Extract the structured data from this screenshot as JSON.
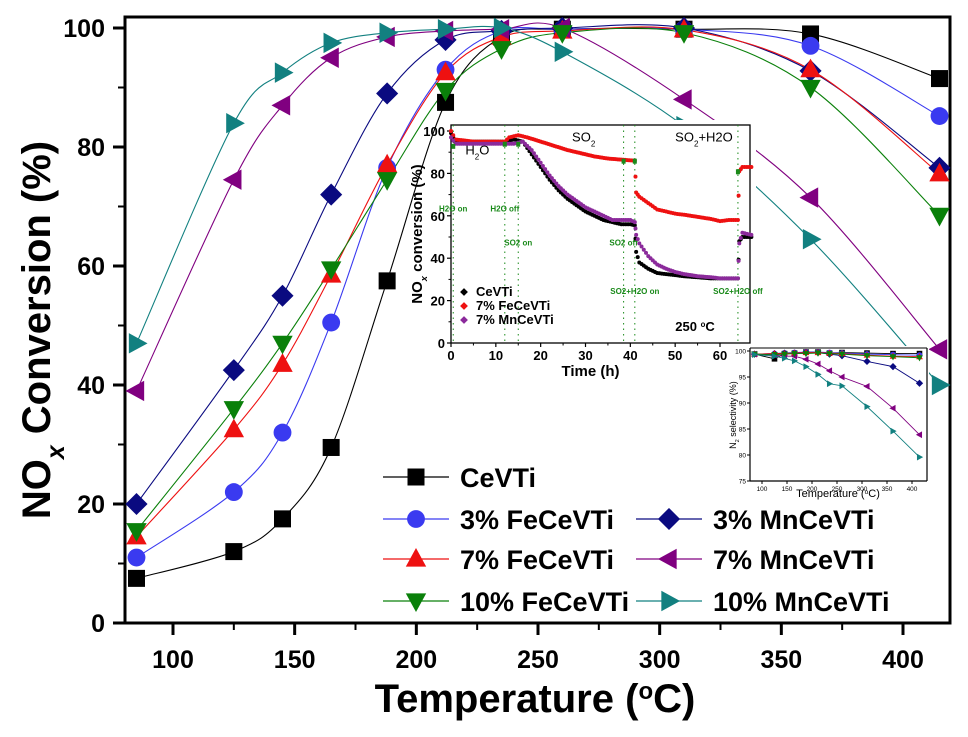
{
  "chart_data": [
    {
      "id": "main",
      "type": "line",
      "title": "",
      "xlabel": "Temperature (",
      "xlabel_sup": "o",
      "xlabel_tail": "C)",
      "ylabel_main": "NO",
      "ylabel_sub": "x",
      "ylabel_tail": " Conversion (%)",
      "xlim": [
        73,
        418
      ],
      "ylim": [
        0,
        100
      ],
      "xticks": [
        100,
        150,
        200,
        250,
        300,
        350,
        400
      ],
      "yticks": [
        0,
        20,
        40,
        60,
        80,
        100
      ],
      "grid": false,
      "legend_placement": "bottom-center",
      "x": [
        85,
        125,
        145,
        165,
        188,
        212,
        235,
        260,
        310,
        362,
        415
      ],
      "series": [
        {
          "name": "CeVTi",
          "color": "#000000",
          "marker": "square",
          "values": [
            7.5,
            12,
            17.5,
            29.5,
            57.5,
            87.5,
            98.5,
            99.8,
            99.8,
            99,
            91.5
          ]
        },
        {
          "name": "3% FeCeVTi",
          "color": "#3a3af0",
          "marker": "circle",
          "values": [
            11,
            22,
            32,
            50.5,
            76.5,
            93,
            99.5,
            99.8,
            99.8,
            97,
            85.2
          ]
        },
        {
          "name": "3% MnCeVTi",
          "color": "#0a0a80",
          "marker": "diamond",
          "values": [
            20,
            42.5,
            55,
            72,
            89,
            98,
            99.5,
            100,
            100,
            92.8,
            76.5
          ]
        },
        {
          "name": "7% FeCeVTi",
          "color": "#ee1111",
          "marker": "triangle-up",
          "values": [
            14.5,
            32.5,
            43.5,
            58.5,
            77,
            92.5,
            98.5,
            99.5,
            99.7,
            93,
            75.5
          ]
        },
        {
          "name": "7% MnCeVTi",
          "color": "#800080",
          "marker": "triangle-left",
          "values": [
            39,
            74.5,
            87,
            95,
            98.5,
            99.5,
            99.8,
            100,
            88,
            71.5,
            46
          ]
        },
        {
          "name": "10% FeCeVTi",
          "color": "#0a800a",
          "marker": "triangle-down",
          "values": [
            15.5,
            36,
            47,
            59.5,
            74.5,
            89.5,
            96.5,
            99.2,
            99.2,
            90,
            68.5
          ]
        },
        {
          "name": "10% MnCeVTi",
          "color": "#128080",
          "marker": "triangle-right",
          "values": [
            47,
            84,
            92.5,
            97.5,
            99.2,
            99.8,
            100,
            96,
            83.5,
            64.5,
            40
          ]
        }
      ]
    },
    {
      "id": "inset-time",
      "type": "scatter",
      "xlabel": "Time (h)",
      "ylabel_main": "NO",
      "ylabel_sub": "x",
      "ylabel_tail": " conversion (%)",
      "xlim": [
        0,
        67
      ],
      "ylim": [
        0,
        100
      ],
      "xticks": [
        0,
        10,
        20,
        30,
        40,
        50,
        60
      ],
      "yticks": [
        0,
        20,
        40,
        60,
        80,
        100
      ],
      "annotation": "250 °C",
      "annotation_main": "250 ",
      "annotation_sup": "o",
      "annotation_tail": "C",
      "phase_labels": [
        {
          "text": "H2O",
          "main": "H",
          "sub": "2",
          "tail": "O",
          "x": 3.2,
          "y": 89
        },
        {
          "text": "SO2",
          "main": "SO",
          "sub": "2",
          "tail": "",
          "x": 27,
          "y": 95
        },
        {
          "text": "SO2+H2O",
          "main": "SO",
          "sub": "2",
          "tail": "+H2O",
          "x": 50,
          "y": 95
        }
      ],
      "events": [
        {
          "label": "H2O on",
          "time": 0.5,
          "label_y": 62
        },
        {
          "label": "H2O off",
          "time": 12,
          "label_y": 62
        },
        {
          "label": "SO2 on",
          "time": 15,
          "label_y": 46
        },
        {
          "label": "SO2 off",
          "time": 38.5,
          "label_y": 46
        },
        {
          "label": "SO2+H2O on",
          "time": 41,
          "label_y": 23
        },
        {
          "label": "SO2+H2O off",
          "time": 64,
          "label_y": 23
        }
      ],
      "event_color": "#1a8a1a",
      "series": [
        {
          "name": "CeVTi",
          "color": "#000000",
          "points": [
            [
              0,
              99
            ],
            [
              1,
              95
            ],
            [
              5,
              95
            ],
            [
              10,
              95
            ],
            [
              12,
              95
            ],
            [
              14,
              96
            ],
            [
              16,
              95
            ],
            [
              18,
              89
            ],
            [
              20,
              83
            ],
            [
              22,
              77
            ],
            [
              24,
              72
            ],
            [
              26,
              68
            ],
            [
              28,
              65
            ],
            [
              30,
              62
            ],
            [
              32,
              60
            ],
            [
              34,
              58
            ],
            [
              36,
              57
            ],
            [
              38,
              56
            ],
            [
              40,
              56
            ],
            [
              41,
              55.5
            ],
            [
              41.3,
              43
            ],
            [
              42,
              38
            ],
            [
              44,
              35
            ],
            [
              46,
              33
            ],
            [
              48,
              32.5
            ],
            [
              50,
              32
            ],
            [
              52,
              31.5
            ],
            [
              55,
              31
            ],
            [
              58,
              30.5
            ],
            [
              60,
              30.5
            ],
            [
              62,
              30.5
            ],
            [
              64,
              30.5
            ],
            [
              64.3,
              48
            ],
            [
              65,
              50
            ],
            [
              67,
              50
            ]
          ]
        },
        {
          "name": "7% FeCeVTi",
          "color": "#ee1111",
          "points": [
            [
              0,
              100
            ],
            [
              1,
              96
            ],
            [
              5,
              95
            ],
            [
              10,
              95
            ],
            [
              12,
              95
            ],
            [
              13,
              97
            ],
            [
              15,
              98
            ],
            [
              17,
              97
            ],
            [
              20,
              95
            ],
            [
              23,
              93
            ],
            [
              26,
              91
            ],
            [
              29,
              89.5
            ],
            [
              32,
              88
            ],
            [
              35,
              87
            ],
            [
              38,
              86.5
            ],
            [
              41,
              86
            ],
            [
              41.3,
              71
            ],
            [
              42,
              69
            ],
            [
              44,
              66
            ],
            [
              46,
              63
            ],
            [
              48,
              62
            ],
            [
              50,
              61
            ],
            [
              52,
              60.5
            ],
            [
              55,
              59.5
            ],
            [
              58,
              58.5
            ],
            [
              60,
              57.5
            ],
            [
              62,
              58
            ],
            [
              64,
              58
            ],
            [
              64.3,
              81
            ],
            [
              65,
              83
            ],
            [
              67,
              83
            ]
          ]
        },
        {
          "name": "7% MnCeVTi",
          "color": "#8b2a9b",
          "points": [
            [
              0,
              97
            ],
            [
              1,
              94
            ],
            [
              5,
              94
            ],
            [
              10,
              94
            ],
            [
              12,
              94
            ],
            [
              14,
              94
            ],
            [
              16,
              95
            ],
            [
              18,
              91
            ],
            [
              20,
              85
            ],
            [
              22,
              79
            ],
            [
              24,
              74
            ],
            [
              26,
              70
            ],
            [
              28,
              67
            ],
            [
              30,
              64
            ],
            [
              32,
              62
            ],
            [
              34,
              60
            ],
            [
              36,
              58
            ],
            [
              38,
              58
            ],
            [
              40,
              58
            ],
            [
              41,
              57
            ],
            [
              41.3,
              51
            ],
            [
              42,
              47
            ],
            [
              44,
              41
            ],
            [
              46,
              37
            ],
            [
              48,
              35
            ],
            [
              50,
              33.5
            ],
            [
              52,
              32.5
            ],
            [
              55,
              31.5
            ],
            [
              58,
              31
            ],
            [
              60,
              30.5
            ],
            [
              62,
              30.5
            ],
            [
              64,
              30.5
            ],
            [
              64.3,
              47
            ],
            [
              65,
              52
            ],
            [
              67,
              51
            ]
          ]
        }
      ],
      "legend": [
        "CeVTi",
        "7% FeCeVTi",
        "7% MnCeVTi"
      ],
      "legend_placement": "bottom-left"
    },
    {
      "id": "inset-selectivity",
      "type": "line",
      "xlabel": "Temperature (",
      "xlabel_sup": "o",
      "xlabel_tail": "C)",
      "ylabel_main": "N",
      "ylabel_sub": "2",
      "ylabel_tail": " selectivity (%)",
      "xlim": [
        78,
        422
      ],
      "ylim": [
        75,
        100
      ],
      "xticks": [
        100,
        150,
        200,
        250,
        300,
        350,
        400
      ],
      "yticks": [
        75,
        80,
        85,
        90,
        95,
        100
      ],
      "x": [
        85,
        125,
        145,
        165,
        188,
        212,
        235,
        260,
        310,
        362,
        415
      ],
      "series": [
        {
          "name": "CeVTi",
          "color": "#000000",
          "marker": "square",
          "values": [
            99.4,
            98.5,
            99.5,
            99.6,
            99.8,
            99.8,
            99.6,
            99.7,
            99.6,
            99.5,
            99.5
          ]
        },
        {
          "name": "3% FeCeVTi",
          "color": "#3a3af0",
          "marker": "circle",
          "values": [
            99.4,
            99.5,
            99.6,
            99.7,
            99.8,
            99.8,
            99.7,
            99.6,
            99.4,
            99.3,
            99.2
          ]
        },
        {
          "name": "3% MnCeVTi",
          "color": "#0a0a80",
          "marker": "diamond",
          "values": [
            99.4,
            99.5,
            99.6,
            99.6,
            99.7,
            99.7,
            99.4,
            99.1,
            98,
            97,
            93.8
          ]
        },
        {
          "name": "7% FeCeVTi",
          "color": "#ee1111",
          "marker": "triangle-up",
          "values": [
            99.4,
            99.5,
            99.5,
            99.6,
            99.7,
            99.7,
            99.6,
            99.5,
            99.2,
            99,
            98.9
          ]
        },
        {
          "name": "7% MnCeVTi",
          "color": "#800080",
          "marker": "triangle-left",
          "values": [
            99.4,
            99.2,
            99,
            99,
            98.4,
            97.5,
            96.2,
            95,
            93.2,
            89,
            83.9
          ]
        },
        {
          "name": "10% FeCeVTi",
          "color": "#0a800a",
          "marker": "triangle-down",
          "values": [
            99.4,
            99.3,
            99.4,
            99.5,
            99.5,
            99.6,
            99.5,
            99.4,
            99.1,
            98.9,
            98.7
          ]
        },
        {
          "name": "10% MnCeVTi",
          "color": "#128080",
          "marker": "triangle-right",
          "values": [
            99.3,
            99,
            98.6,
            98.1,
            97,
            95.5,
            93.7,
            93.3,
            89.3,
            84.6,
            79.6
          ]
        }
      ]
    }
  ]
}
